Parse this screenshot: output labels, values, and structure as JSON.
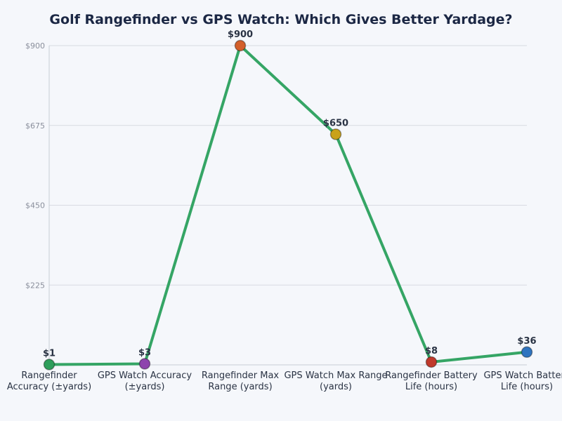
{
  "chart_data": {
    "type": "line",
    "title": "Golf Rangefinder vs GPS Watch: Which Gives Better Yardage?",
    "categories": [
      [
        "Rangefinder",
        "Accuracy (±yards)"
      ],
      [
        "GPS Watch Accuracy",
        "(±yards)"
      ],
      [
        "Rangefinder Max",
        "Range (yards)"
      ],
      [
        "GPS Watch Max Range",
        "(yards)"
      ],
      [
        "Rangefinder Battery",
        "Life (hours)"
      ],
      [
        "GPS Watch Battery",
        "Life (hours)"
      ]
    ],
    "values": [
      1,
      3,
      900,
      650,
      8,
      36
    ],
    "data_labels": [
      "$1",
      "$3",
      "$900",
      "$650",
      "$8",
      "$36"
    ],
    "point_colors": [
      "#2e9e5b",
      "#8e44ad",
      "#d35f2a",
      "#c9a21a",
      "#c0392b",
      "#2f74c0"
    ],
    "line_color": "#35a565",
    "yticks": [
      225,
      450,
      675,
      900
    ],
    "ytick_labels": [
      "$225",
      "$450",
      "$675",
      "$900"
    ],
    "ylim": [
      0,
      900
    ],
    "grid": true,
    "xlabel": "",
    "ylabel": ""
  }
}
